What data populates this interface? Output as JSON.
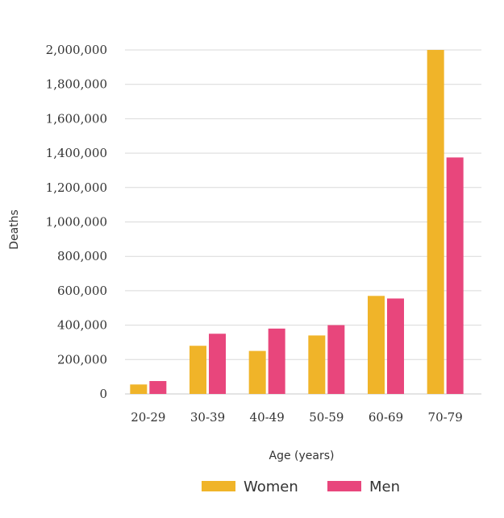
{
  "chart_data": {
    "type": "bar",
    "categories": [
      "20-29",
      "30-39",
      "40-49",
      "50-59",
      "60-69",
      "70-79"
    ],
    "series": [
      {
        "name": "Women",
        "color": "#f0b429",
        "values": [
          55000,
          280000,
          250000,
          340000,
          570000,
          2000000
        ]
      },
      {
        "name": "Men",
        "color": "#e8467c",
        "values": [
          75000,
          350000,
          380000,
          400000,
          555000,
          1375000
        ]
      }
    ],
    "title": "",
    "xlabel": "Age (years)",
    "ylabel": "Deaths",
    "ylim": [
      0,
      2000000
    ],
    "yticks": [
      0,
      200000,
      400000,
      600000,
      800000,
      1000000,
      1200000,
      1400000,
      1600000,
      1800000,
      2000000
    ],
    "ytick_labels": [
      "0",
      "200,000",
      "400,000",
      "600,000",
      "800,000",
      "1,000,000",
      "1,200,000",
      "1,400,000",
      "1,600,000",
      "1,800,000",
      "2,000,000"
    ],
    "grid": true,
    "legend": "bottom"
  }
}
